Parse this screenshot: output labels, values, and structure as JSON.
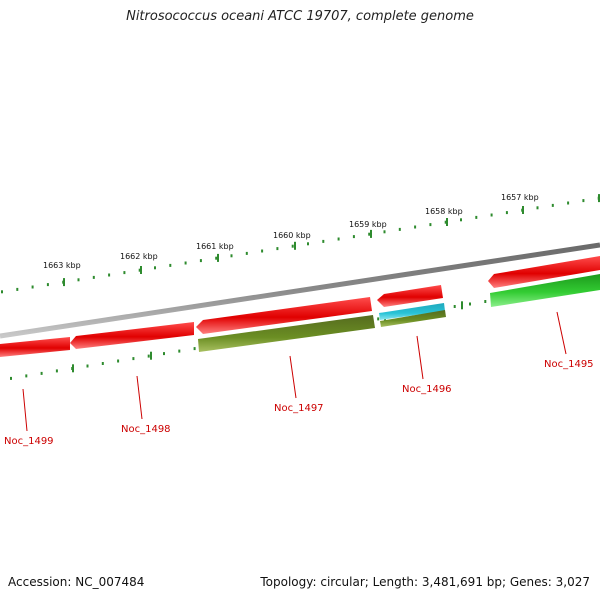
{
  "title": "Nitrosococcus oceani ATCC 19707, complete genome",
  "footer": {
    "accession": "Accession: NC_007484",
    "stats": "Topology: circular; Length: 3,481,691 bp; Genes: 3,027"
  },
  "colors": {
    "backbone": "#808080",
    "tick": "#2e8b2e",
    "forward_gene": "#ee1111",
    "reverse_gene_red": "#ee1111",
    "olive": "#6b8e23",
    "cyan": "#29c3d6",
    "green": "#33cc33",
    "label": "#cc0000"
  },
  "scale_ticks": [
    {
      "label": "1657 kbp"
    },
    {
      "label": "1658 kbp"
    },
    {
      "label": "1659 kbp"
    },
    {
      "label": "1660 kbp"
    },
    {
      "label": "1661 kbp"
    },
    {
      "label": "1662 kbp"
    },
    {
      "label": "1663 kbp"
    }
  ],
  "gene_labels": [
    "Noc_1499",
    "Noc_1498",
    "Noc_1497",
    "Noc_1496",
    "Noc_1495"
  ]
}
